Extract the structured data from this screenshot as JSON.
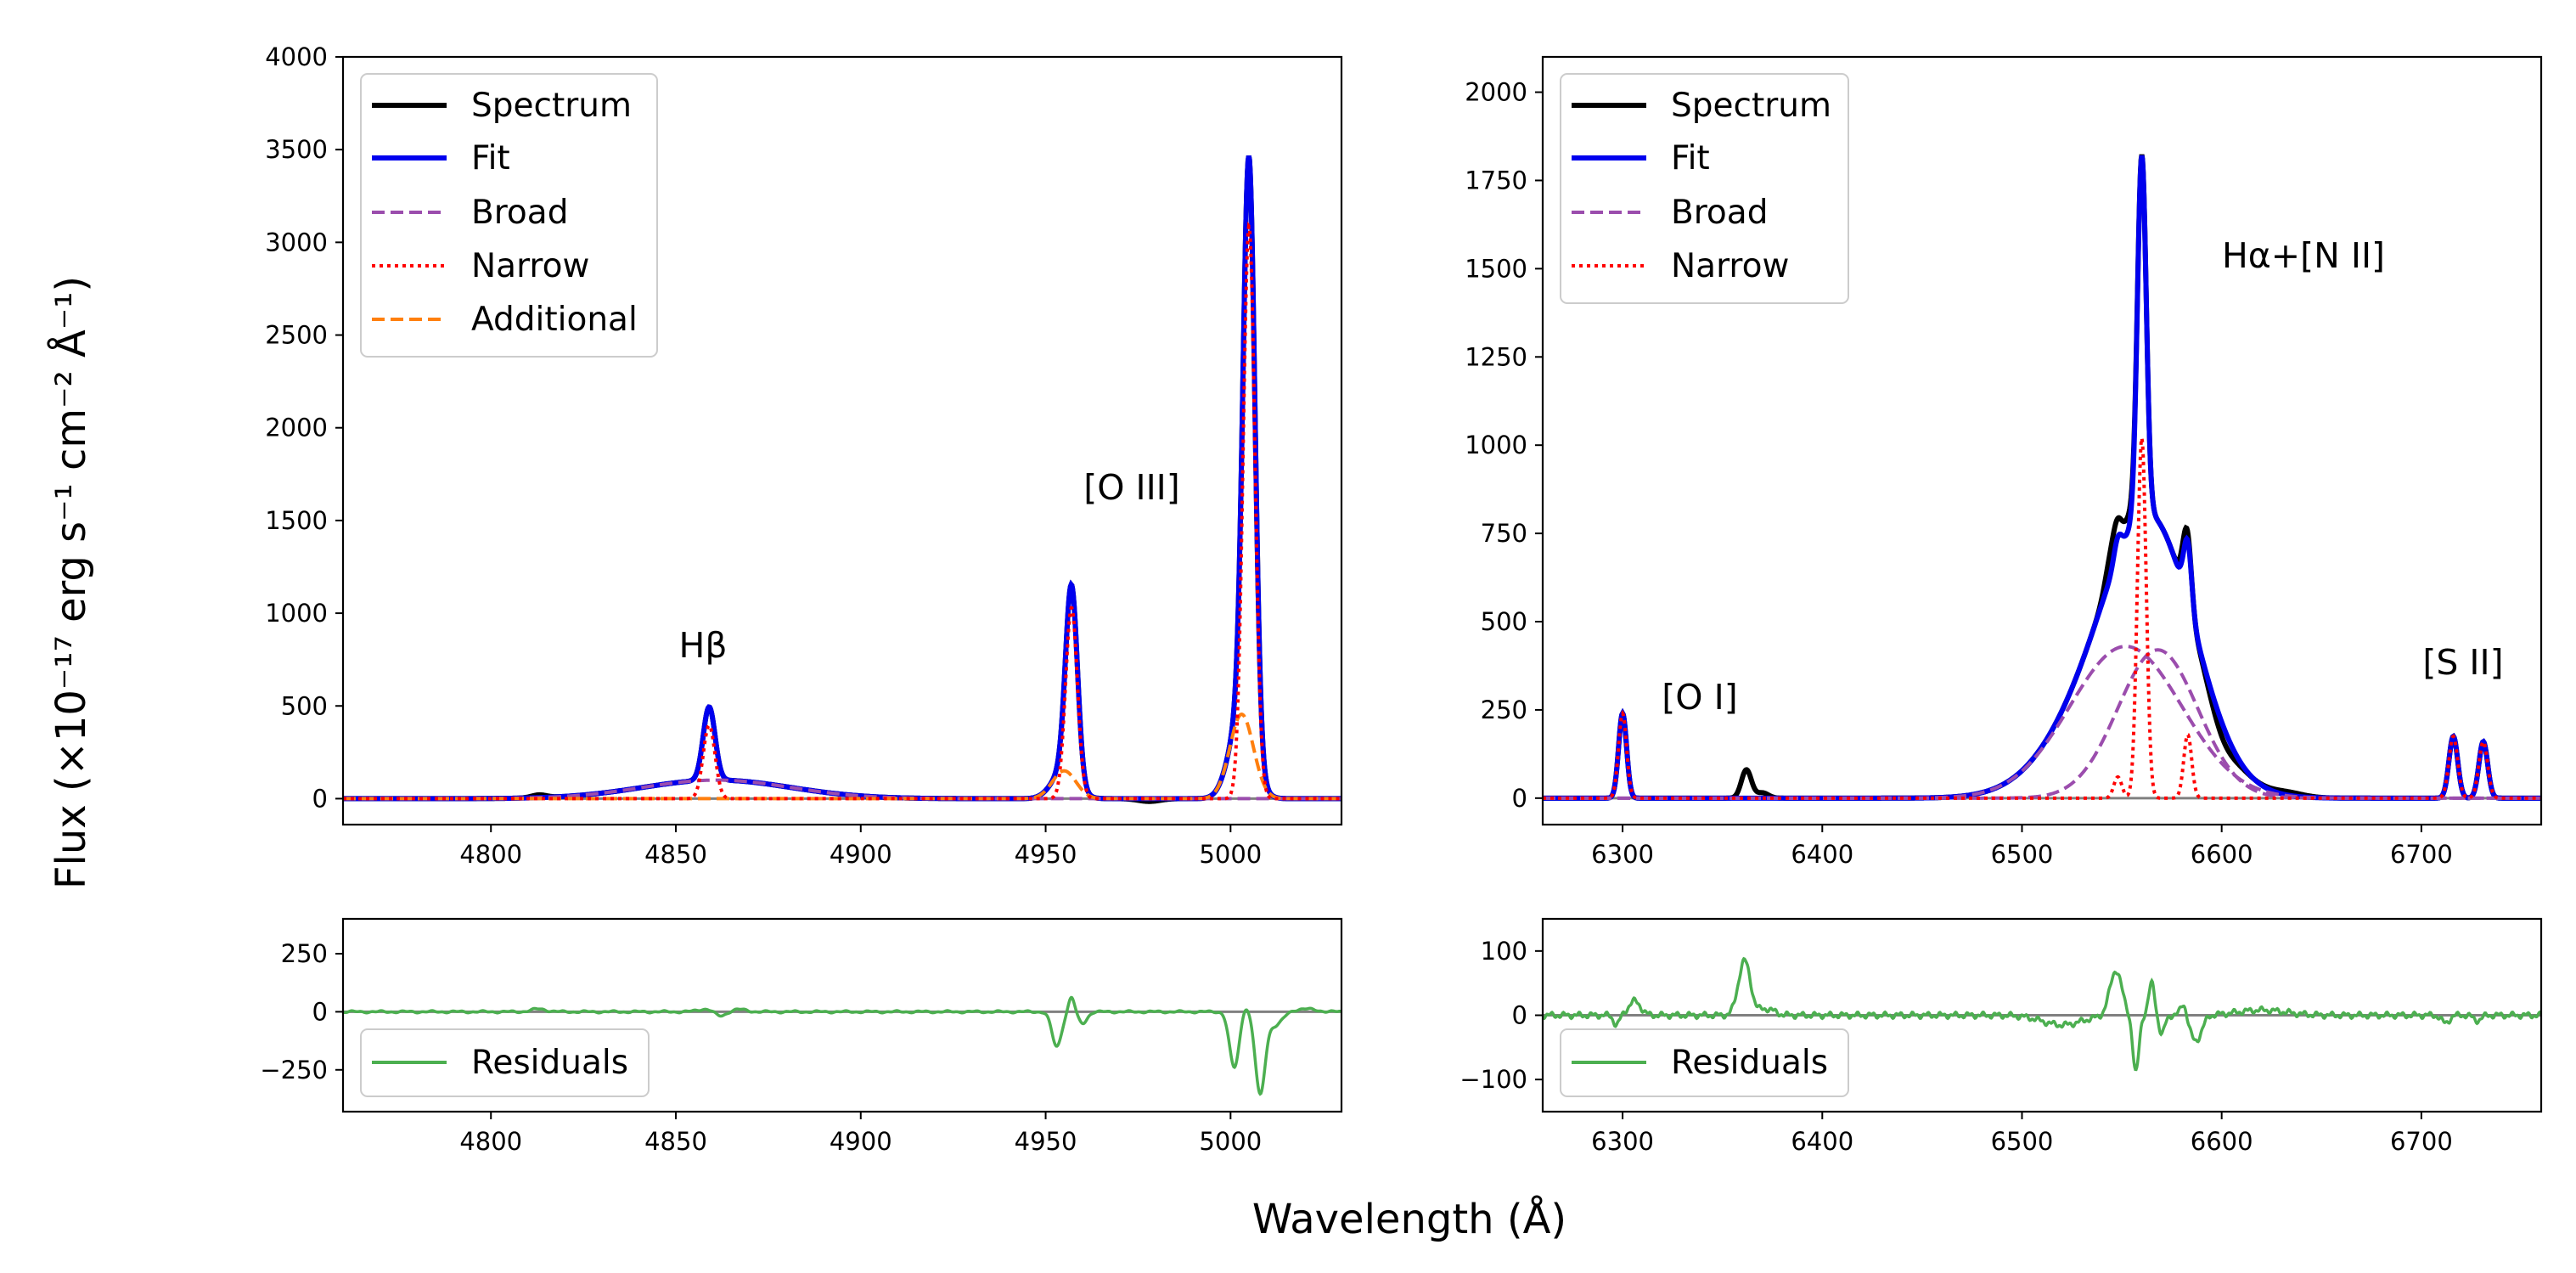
{
  "figure": {
    "ylabel": "Flux (×10⁻¹⁷ erg s⁻¹ cm⁻² Å⁻¹)",
    "xlabel": "Wavelength (Å)",
    "colors": {
      "spectrum": "#000000",
      "fit": "#0000ee",
      "broad": "#9b4dad",
      "narrow": "#ff0000",
      "additional": "#ff7f0e",
      "residuals": "#4caf50",
      "zero_line": "#808080"
    }
  },
  "chart_data": [
    {
      "name": "hbeta-oiii-main",
      "type": "line",
      "xlim": [
        4760,
        5030
      ],
      "ylim": [
        -140,
        4000
      ],
      "xticks": [
        4800,
        4850,
        4900,
        4950,
        5000
      ],
      "yticks": [
        0,
        500,
        1000,
        1500,
        2000,
        2500,
        3000,
        3500,
        4000
      ],
      "legend": [
        "Spectrum",
        "Fit",
        "Broad",
        "Narrow",
        "Additional"
      ],
      "annotations": [
        {
          "text": "Hβ",
          "x": 4859,
          "y": 760
        },
        {
          "text": "[O III]",
          "x": 4965,
          "y": 1640
        }
      ],
      "continuum": 0,
      "components": {
        "broad": [
          {
            "center": 4861,
            "amp": 100,
            "sigma": 20
          }
        ],
        "narrow": [
          {
            "center": 4859,
            "amp": 395,
            "sigma": 1.6
          },
          {
            "center": 4957,
            "amp": 1030,
            "sigma": 1.6
          },
          {
            "center": 5005,
            "amp": 3090,
            "sigma": 1.6
          }
        ],
        "additional": [
          {
            "center": 4955,
            "amp": 150,
            "sigma": 3.2
          },
          {
            "center": 5003,
            "amp": 455,
            "sigma": 3.2
          }
        ]
      },
      "spectrum_extra": [
        {
          "center": 4813,
          "amp": 15,
          "sigma": 2
        },
        {
          "center": 4978,
          "amp": -15,
          "sigma": 3
        }
      ]
    },
    {
      "name": "hbeta-oiii-residuals",
      "type": "line",
      "xlim": [
        4760,
        5030
      ],
      "ylim": [
        -430,
        400
      ],
      "xticks": [
        4800,
        4850,
        4900,
        4950,
        5000
      ],
      "yticks": [
        -250,
        0,
        250
      ],
      "ytick_labels": [
        "−250",
        "0",
        "250"
      ],
      "legend": [
        "Residuals"
      ],
      "features": [
        {
          "center": 4813,
          "amp": 12,
          "sigma": 2
        },
        {
          "center": 4858,
          "amp": 12,
          "sigma": 2
        },
        {
          "center": 4862,
          "amp": -20,
          "sigma": 1.5
        },
        {
          "center": 4867,
          "amp": 10,
          "sigma": 2
        },
        {
          "center": 4953,
          "amp": -150,
          "sigma": 1.3
        },
        {
          "center": 4957,
          "amp": 65,
          "sigma": 0.8
        },
        {
          "center": 4960,
          "amp": -50,
          "sigma": 1.2
        },
        {
          "center": 5001,
          "amp": -240,
          "sigma": 1.3
        },
        {
          "center": 5004,
          "amp": 30,
          "sigma": 0.8
        },
        {
          "center": 5008,
          "amp": -350,
          "sigma": 1.3
        },
        {
          "center": 5012,
          "amp": -60,
          "sigma": 2
        },
        {
          "center": 5020,
          "amp": 12,
          "sigma": 3
        }
      ]
    },
    {
      "name": "halpha-main",
      "type": "line",
      "xlim": [
        6260,
        6760
      ],
      "ylim": [
        -75,
        2100
      ],
      "xticks": [
        6300,
        6400,
        6500,
        6600,
        6700
      ],
      "yticks": [
        0,
        250,
        500,
        750,
        1000,
        1250,
        1500,
        1750,
        2000
      ],
      "legend": [
        "Spectrum",
        "Fit",
        "Broad",
        "Narrow"
      ],
      "annotations": [
        {
          "text": "Hα+[N II]",
          "x": 6640,
          "y": 1500
        },
        {
          "text": "[O I]",
          "x": 6333,
          "y": 285
        },
        {
          "text": "[S II]",
          "x": 6720,
          "y": 330
        }
      ],
      "continuum": 0,
      "components": {
        "broad": [
          {
            "center": 6552,
            "amp": 430,
            "sigma": 28
          },
          {
            "center": 6568,
            "amp": 420,
            "sigma": 20
          }
        ],
        "narrow": [
          {
            "center": 6300,
            "amp": 240,
            "sigma": 2
          },
          {
            "center": 6548,
            "amp": 60,
            "sigma": 2
          },
          {
            "center": 6560,
            "amp": 1020,
            "sigma": 2.2
          },
          {
            "center": 6583,
            "amp": 180,
            "sigma": 2
          },
          {
            "center": 6716,
            "amp": 175,
            "sigma": 2.2
          },
          {
            "center": 6731,
            "amp": 160,
            "sigma": 2.2
          }
        ]
      },
      "spectrum_extra": [
        {
          "center": 6362,
          "amp": 80,
          "sigma": 2.5
        },
        {
          "center": 6370,
          "amp": 15,
          "sigma": 3
        },
        {
          "center": 6545,
          "amp": 70,
          "sigma": 3
        },
        {
          "center": 6553,
          "amp": 40,
          "sigma": 3
        },
        {
          "center": 6581,
          "amp": 40,
          "sigma": 2
        },
        {
          "center": 6600,
          "amp": -40,
          "sigma": 6
        },
        {
          "center": 6633,
          "amp": 10,
          "sigma": 8
        }
      ]
    },
    {
      "name": "halpha-residuals",
      "type": "line",
      "xlim": [
        6260,
        6760
      ],
      "ylim": [
        -150,
        150
      ],
      "xticks": [
        6300,
        6400,
        6500,
        6600,
        6700
      ],
      "yticks": [
        -100,
        0,
        100
      ],
      "ytick_labels": [
        "−100",
        "0",
        "100"
      ],
      "legend": [
        "Residuals"
      ],
      "features": [
        {
          "center": 6297,
          "amp": -15,
          "sigma": 1.5
        },
        {
          "center": 6306,
          "amp": 22,
          "sigma": 3
        },
        {
          "center": 6361,
          "amp": 85,
          "sigma": 3
        },
        {
          "center": 6372,
          "amp": 10,
          "sigma": 4
        },
        {
          "center": 6520,
          "amp": -15,
          "sigma": 10
        },
        {
          "center": 6547,
          "amp": 70,
          "sigma": 3
        },
        {
          "center": 6557,
          "amp": -90,
          "sigma": 1.5
        },
        {
          "center": 6565,
          "amp": 50,
          "sigma": 1.5
        },
        {
          "center": 6570,
          "amp": -30,
          "sigma": 1.5
        },
        {
          "center": 6581,
          "amp": 22,
          "sigma": 1.5
        },
        {
          "center": 6587,
          "amp": -40,
          "sigma": 3
        },
        {
          "center": 6620,
          "amp": 8,
          "sigma": 12
        },
        {
          "center": 6712,
          "amp": -12,
          "sigma": 2
        },
        {
          "center": 6728,
          "amp": -8,
          "sigma": 2
        }
      ]
    }
  ]
}
